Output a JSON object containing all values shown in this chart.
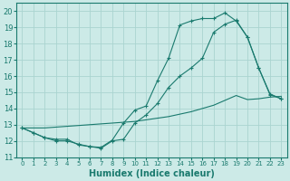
{
  "xlabel": "Humidex (Indice chaleur)",
  "bg_color": "#cceae7",
  "grid_color": "#aad4d0",
  "line_color": "#1a7a6e",
  "xlim": [
    -0.5,
    23.5
  ],
  "ylim": [
    11,
    20.5
  ],
  "yticks": [
    11,
    12,
    13,
    14,
    15,
    16,
    17,
    18,
    19,
    20
  ],
  "xticks": [
    0,
    1,
    2,
    3,
    4,
    5,
    6,
    7,
    8,
    9,
    10,
    11,
    12,
    13,
    14,
    15,
    16,
    17,
    18,
    19,
    20,
    21,
    22,
    23
  ],
  "curve1_x": [
    0,
    1,
    2,
    3,
    4,
    5,
    6,
    7,
    8,
    9,
    10,
    11,
    12,
    13,
    14,
    15,
    16,
    17,
    18,
    19,
    20,
    21,
    22,
    23
  ],
  "curve1_y": [
    12.8,
    12.5,
    12.2,
    12.0,
    12.0,
    11.8,
    11.65,
    11.55,
    12.0,
    12.1,
    13.1,
    13.6,
    14.3,
    15.3,
    16.0,
    16.5,
    17.1,
    18.7,
    19.2,
    19.45,
    18.4,
    16.5,
    14.9,
    14.6
  ],
  "curve2_x": [
    0,
    1,
    2,
    3,
    4,
    5,
    6,
    7,
    8,
    9,
    10,
    11,
    12,
    13,
    14,
    15,
    16,
    17,
    18,
    19,
    20,
    21,
    22,
    23
  ],
  "curve2_y": [
    12.8,
    12.5,
    12.2,
    12.1,
    12.1,
    11.75,
    11.65,
    11.6,
    12.05,
    13.1,
    13.9,
    14.15,
    15.7,
    17.1,
    19.15,
    19.4,
    19.55,
    19.55,
    19.9,
    19.4,
    18.4,
    16.5,
    14.85,
    14.6
  ],
  "curve3_x": [
    0,
    1,
    2,
    3,
    4,
    5,
    6,
    7,
    8,
    9,
    10,
    11,
    12,
    13,
    14,
    15,
    16,
    17,
    18,
    19,
    20,
    21,
    22,
    23
  ],
  "curve3_y": [
    12.8,
    12.8,
    12.8,
    12.85,
    12.9,
    12.95,
    13.0,
    13.05,
    13.1,
    13.15,
    13.2,
    13.3,
    13.4,
    13.5,
    13.65,
    13.8,
    14.0,
    14.2,
    14.5,
    14.8,
    14.55,
    14.6,
    14.7,
    14.75
  ]
}
